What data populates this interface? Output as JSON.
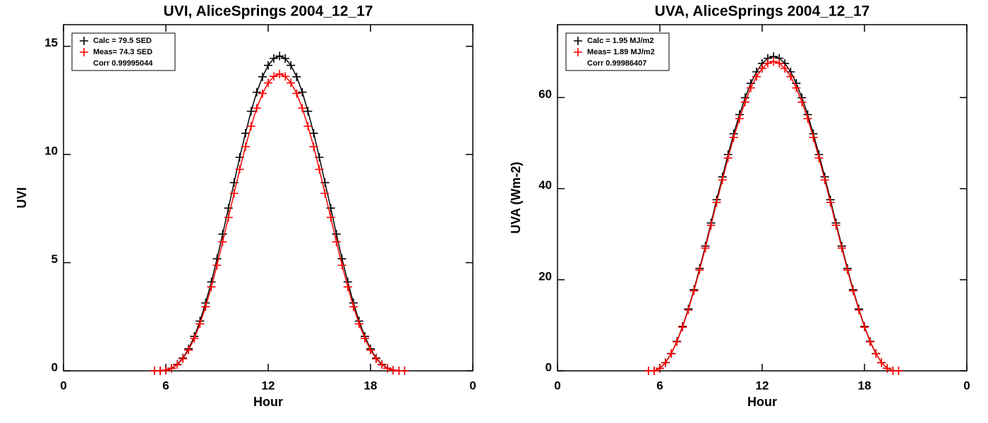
{
  "chart_data": [
    {
      "type": "line",
      "title": "UVI, AliceSprings 2004_12_17",
      "xlabel": "Hour",
      "ylabel": "UVI",
      "x": [
        5.33,
        5.67,
        6,
        6.33,
        6.67,
        7,
        7.33,
        7.67,
        8,
        8.33,
        8.67,
        9,
        9.33,
        9.67,
        10,
        10.33,
        10.67,
        11,
        11.33,
        11.67,
        12,
        12.33,
        12.67,
        13,
        13.33,
        13.67,
        14,
        14.33,
        14.67,
        15,
        15.33,
        15.67,
        16,
        16.33,
        16.67,
        17,
        17.33,
        17.67,
        18,
        18.33,
        18.67,
        19,
        19.33,
        19.67,
        20
      ],
      "series": [
        {
          "name": "Calc = 79.5 SED",
          "color": "#000000",
          "values": [
            0,
            0,
            0.03,
            0.12,
            0.3,
            0.59,
            1.02,
            1.59,
            2.3,
            3.14,
            4.11,
            5.18,
            6.32,
            7.52,
            8.7,
            9.87,
            10.98,
            12,
            12.88,
            13.59,
            14.12,
            14.44,
            14.55,
            14.44,
            14.12,
            13.59,
            12.88,
            12,
            10.98,
            9.87,
            8.7,
            7.52,
            6.32,
            5.18,
            4.11,
            3.14,
            2.3,
            1.59,
            1.02,
            0.59,
            0.3,
            0.12,
            0.03,
            0,
            0
          ]
        },
        {
          "name": "Meas= 74.3 SED",
          "color": "#ff0000",
          "values": [
            0,
            0,
            0.03,
            0.11,
            0.28,
            0.56,
            0.96,
            1.5,
            2.17,
            2.96,
            3.88,
            4.88,
            5.96,
            7.09,
            8.2,
            9.31,
            10.36,
            11.31,
            12.14,
            12.82,
            13.31,
            13.61,
            13.72,
            13.61,
            13.31,
            12.82,
            12.14,
            11.31,
            10.36,
            9.31,
            8.2,
            7.09,
            5.96,
            4.88,
            3.88,
            2.96,
            2.17,
            1.5,
            0.96,
            0.56,
            0.28,
            0.11,
            0.03,
            0,
            0
          ]
        }
      ],
      "annotation": "Corr 0.99995044",
      "legend": "upper left",
      "xlim": [
        0,
        24
      ],
      "xticks": [
        0,
        6,
        12,
        18,
        {
          "value": 24,
          "label": "0"
        }
      ],
      "ylim": [
        0,
        16
      ],
      "yticks": [
        0,
        5,
        10,
        15
      ]
    },
    {
      "type": "line",
      "title": "UVA, AliceSprings 2004_12_17",
      "xlabel": "Hour",
      "ylabel": "UVA (Wm-2)",
      "x": [
        5.33,
        5.67,
        6,
        6.33,
        6.67,
        7,
        7.33,
        7.67,
        8,
        8.33,
        8.67,
        9,
        9.33,
        9.67,
        10,
        10.33,
        10.67,
        11,
        11.33,
        11.67,
        12,
        12.33,
        12.67,
        13,
        13.33,
        13.67,
        14,
        14.33,
        14.67,
        15,
        15.33,
        15.67,
        16,
        16.33,
        16.67,
        17,
        17.33,
        17.67,
        18,
        18.33,
        18.67,
        19,
        19.33,
        19.67,
        20
      ],
      "series": [
        {
          "name": "Calc = 1.95 MJ/m2",
          "color": "#000000",
          "values": [
            0,
            0,
            0.55,
            1.81,
            3.81,
            6.47,
            9.74,
            13.57,
            17.84,
            22.49,
            27.39,
            32.46,
            37.56,
            42.59,
            47.48,
            52.06,
            56.26,
            59.97,
            63.13,
            65.65,
            67.49,
            68.63,
            69,
            68.63,
            67.49,
            65.65,
            63.13,
            59.97,
            56.26,
            52.06,
            47.48,
            42.59,
            37.56,
            32.46,
            27.39,
            22.49,
            17.84,
            13.57,
            9.74,
            6.47,
            3.81,
            1.81,
            0.55,
            0,
            0
          ]
        },
        {
          "name": "Meas= 1.89 MJ/m2",
          "color": "#ff0000",
          "values": [
            0,
            0,
            0.54,
            1.78,
            3.75,
            6.37,
            9.59,
            13.35,
            17.56,
            22.13,
            26.96,
            31.95,
            36.97,
            41.91,
            46.72,
            51.23,
            55.36,
            59.01,
            62.12,
            64.6,
            66.41,
            67.53,
            67.9,
            67.53,
            66.41,
            64.6,
            62.12,
            59.01,
            55.36,
            51.23,
            46.72,
            41.91,
            36.97,
            31.95,
            26.96,
            22.13,
            17.56,
            13.35,
            9.59,
            6.37,
            3.75,
            1.78,
            0.54,
            0,
            0
          ]
        }
      ],
      "annotation": "Corr 0.99986407",
      "legend": "upper left",
      "xlim": [
        0,
        24
      ],
      "xticks": [
        0,
        6,
        12,
        18,
        {
          "value": 24,
          "label": "0"
        }
      ],
      "ylim": [
        0,
        76
      ],
      "yticks": [
        0,
        20,
        40,
        60
      ]
    }
  ]
}
